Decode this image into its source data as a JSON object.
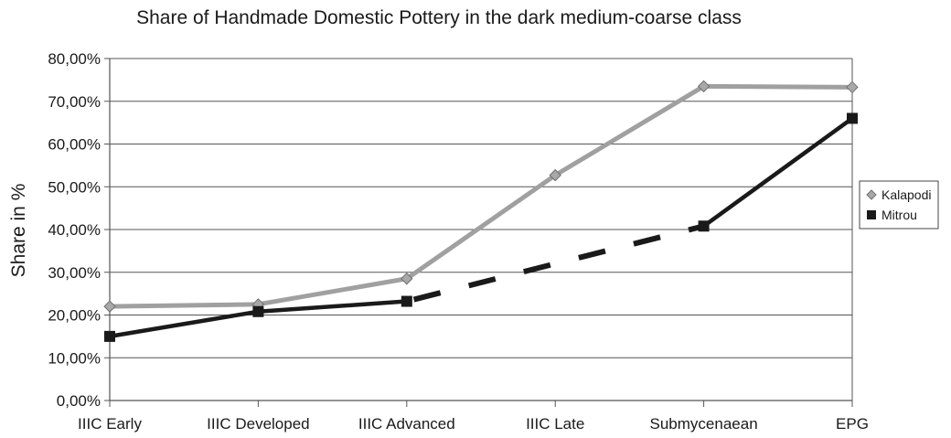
{
  "chart_data": {
    "type": "line",
    "title": "Share of Handmade Domestic Pottery in the dark medium-coarse class",
    "xlabel": "",
    "ylabel": "Share in %",
    "categories": [
      "IIIC Early",
      "IIIC Developed",
      "IIIC Advanced",
      "IIIC Late",
      "Submycenaean",
      "EPG"
    ],
    "ylim": [
      0,
      80
    ],
    "yticks": [
      0,
      10,
      20,
      30,
      40,
      50,
      60,
      70,
      80
    ],
    "ytick_labels": [
      "0,00%",
      "10,00%",
      "20,00%",
      "30,00%",
      "40,00%",
      "50,00%",
      "60,00%",
      "70,00%",
      "80,00%"
    ],
    "grid": true,
    "legend": "right",
    "series": [
      {
        "name": "Kalapodi",
        "marker": "diamond",
        "color": "#a0a0a0",
        "values": [
          22.0,
          22.5,
          28.5,
          52.7,
          73.5,
          73.3
        ]
      },
      {
        "name": "Mitrou",
        "marker": "square",
        "color": "#1a1a1a",
        "values": [
          15.0,
          20.8,
          23.2,
          null,
          40.8,
          66.0
        ],
        "dashed_gap": [
          2,
          4
        ]
      }
    ]
  }
}
